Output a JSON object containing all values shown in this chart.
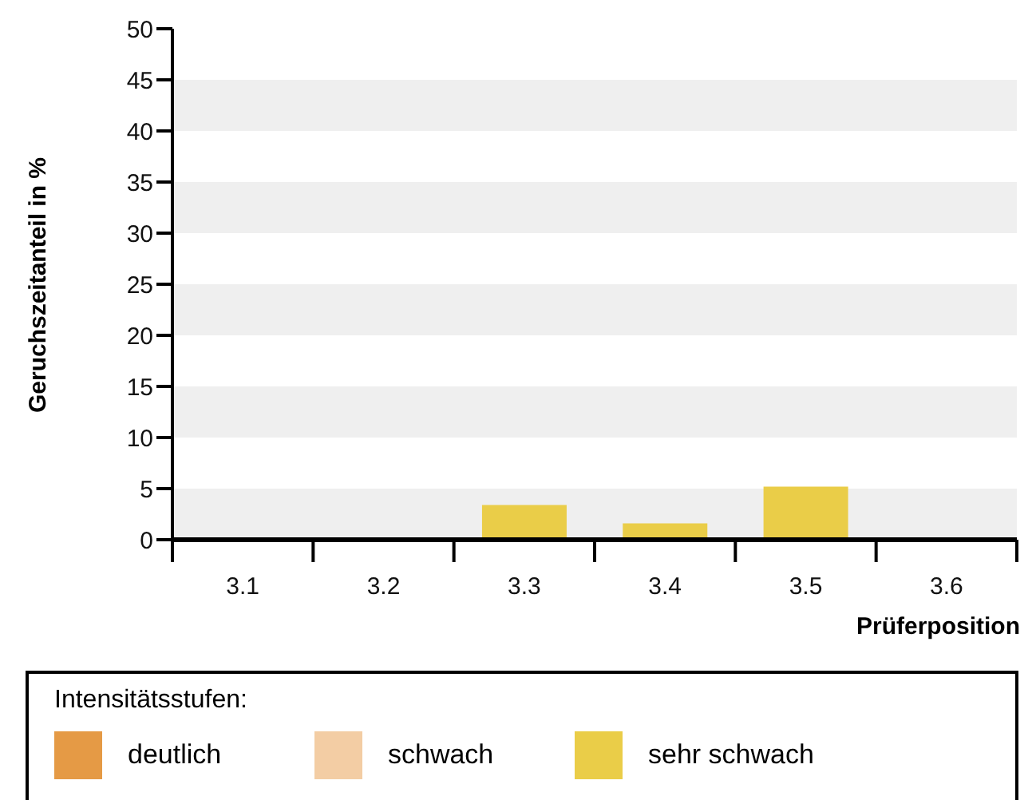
{
  "chart_data": {
    "type": "bar",
    "stacked": true,
    "categories": [
      "3.1",
      "3.2",
      "3.3",
      "3.4",
      "3.5",
      "3.6"
    ],
    "series": [
      {
        "name": "deutlich",
        "color": "#e59a45",
        "values": [
          0,
          0,
          0,
          0,
          0,
          0
        ]
      },
      {
        "name": "schwach",
        "color": "#f3cda4",
        "values": [
          0,
          0,
          0,
          0,
          0,
          0
        ]
      },
      {
        "name": "sehr schwach",
        "color": "#eacd48",
        "values": [
          0,
          0,
          3.4,
          1.6,
          5.2,
          0
        ]
      }
    ],
    "ylim": [
      0,
      50
    ],
    "yticks": [
      0,
      5,
      10,
      15,
      20,
      25,
      30,
      35,
      40,
      45,
      50
    ],
    "bands": [
      {
        "axis": "y",
        "from": 0,
        "to": 5,
        "color": "#efefef"
      },
      {
        "axis": "y",
        "from": 10,
        "to": 15,
        "color": "#efefef"
      },
      {
        "axis": "y",
        "from": 20,
        "to": 25,
        "color": "#efefef"
      },
      {
        "axis": "y",
        "from": 30,
        "to": 35,
        "color": "#efefef"
      },
      {
        "axis": "y",
        "from": 40,
        "to": 45,
        "color": "#efefef"
      }
    ],
    "legend": "bottom",
    "legend_title": "Intensitätsstufen:",
    "xlabel": "Prüferposition",
    "ylabel": "Geruchszeitanteil in %"
  }
}
